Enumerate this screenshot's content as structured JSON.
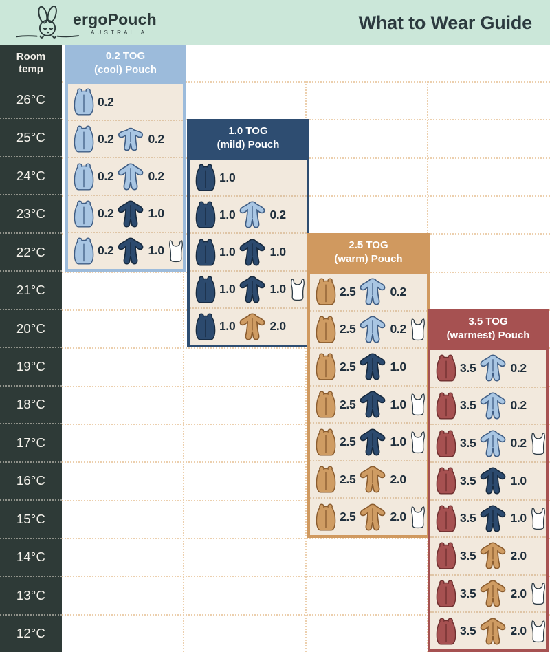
{
  "header": {
    "brand": "ergoPouch",
    "brand_subtitle": "AUSTRALIA",
    "title": "What to Wear Guide"
  },
  "table": {
    "corner_label": "Room temp"
  },
  "colors": {
    "banner_mint": "#cbe7d9",
    "temp_column_charcoal": "#2e3a37",
    "panel_cream": "#f2e9dd",
    "tog_0_2_blue": "#9cbbdb",
    "tog_1_0_navy": "#2e4d71",
    "tog_2_5_tan": "#d0995f",
    "tog_3_5_maroon": "#a65151",
    "singlet_white": "#ffffff",
    "grid_dots": "#eccfad",
    "tog_text": "#202f3c"
  },
  "chart_data": {
    "type": "table",
    "title": "What to Wear Guide",
    "row_axis_label": "Room temp",
    "temperatures": [
      "26°C",
      "25°C",
      "24°C",
      "23°C",
      "22°C",
      "21°C",
      "20°C",
      "19°C",
      "18°C",
      "17°C",
      "16°C",
      "15°C",
      "14°C",
      "13°C",
      "12°C"
    ],
    "panels": [
      {
        "tog": "0.2",
        "title_line1": "0.2 TOG",
        "title_line2": "(cool) Pouch",
        "color": "#9cbbdb",
        "pouch_color": "lightblue",
        "rows": [
          {
            "temp": "26°C",
            "pouch_tog": "0.2",
            "garment": null,
            "singlet": false
          },
          {
            "temp": "25°C",
            "pouch_tog": "0.2",
            "garment": "romper",
            "garment_color": "lightblue",
            "garment_tog": "0.2",
            "singlet": false
          },
          {
            "temp": "24°C",
            "pouch_tog": "0.2",
            "garment": "onesie",
            "garment_color": "lightblue",
            "garment_tog": "0.2",
            "singlet": false
          },
          {
            "temp": "23°C",
            "pouch_tog": "0.2",
            "garment": "onesie",
            "garment_color": "navy",
            "garment_tog": "1.0",
            "singlet": false
          },
          {
            "temp": "22°C",
            "pouch_tog": "0.2",
            "garment": "onesie",
            "garment_color": "navy",
            "garment_tog": "1.0",
            "singlet": true
          }
        ]
      },
      {
        "tog": "1.0",
        "title_line1": "1.0 TOG",
        "title_line2": "(mild) Pouch",
        "color": "#2e4d71",
        "pouch_color": "navy",
        "rows": [
          {
            "temp": "24°C",
            "pouch_tog": "1.0",
            "garment": null,
            "singlet": false
          },
          {
            "temp": "23°C",
            "pouch_tog": "1.0",
            "garment": "onesie",
            "garment_color": "lightblue",
            "garment_tog": "0.2",
            "singlet": false
          },
          {
            "temp": "22°C",
            "pouch_tog": "1.0",
            "garment": "onesie",
            "garment_color": "navy",
            "garment_tog": "1.0",
            "singlet": false
          },
          {
            "temp": "21°C",
            "pouch_tog": "1.0",
            "garment": "onesie",
            "garment_color": "navy",
            "garment_tog": "1.0",
            "singlet": true
          },
          {
            "temp": "20°C",
            "pouch_tog": "1.0",
            "garment": "onesie",
            "garment_color": "tan",
            "garment_tog": "2.0",
            "singlet": false
          }
        ]
      },
      {
        "tog": "2.5",
        "title_line1": "2.5 TOG",
        "title_line2": "(warm) Pouch",
        "color": "#d0995f",
        "pouch_color": "tan",
        "rows": [
          {
            "temp": "21°C",
            "pouch_tog": "2.5",
            "garment": "onesie",
            "garment_color": "lightblue",
            "garment_tog": "0.2",
            "singlet": false
          },
          {
            "temp": "20°C",
            "pouch_tog": "2.5",
            "garment": "onesie",
            "garment_color": "lightblue",
            "garment_tog": "0.2",
            "singlet": true
          },
          {
            "temp": "19°C",
            "pouch_tog": "2.5",
            "garment": "onesie",
            "garment_color": "navy",
            "garment_tog": "1.0",
            "singlet": false
          },
          {
            "temp": "18°C",
            "pouch_tog": "2.5",
            "garment": "onesie",
            "garment_color": "navy",
            "garment_tog": "1.0",
            "singlet": true
          },
          {
            "temp": "17°C",
            "pouch_tog": "2.5",
            "garment": "onesie",
            "garment_color": "navy",
            "garment_tog": "1.0",
            "singlet": true
          },
          {
            "temp": "16°C",
            "pouch_tog": "2.5",
            "garment": "onesie",
            "garment_color": "tan",
            "garment_tog": "2.0",
            "singlet": false
          },
          {
            "temp": "15°C",
            "pouch_tog": "2.5",
            "garment": "onesie",
            "garment_color": "tan",
            "garment_tog": "2.0",
            "singlet": true
          }
        ]
      },
      {
        "tog": "3.5",
        "title_line1": "3.5 TOG",
        "title_line2": "(warmest) Pouch",
        "color": "#a65151",
        "pouch_color": "maroon",
        "rows": [
          {
            "temp": "19°C",
            "pouch_tog": "3.5",
            "garment": "onesie",
            "garment_color": "lightblue",
            "garment_tog": "0.2",
            "singlet": false
          },
          {
            "temp": "18°C",
            "pouch_tog": "3.5",
            "garment": "onesie",
            "garment_color": "lightblue",
            "garment_tog": "0.2",
            "singlet": false
          },
          {
            "temp": "17°C",
            "pouch_tog": "3.5",
            "garment": "onesie",
            "garment_color": "lightblue",
            "garment_tog": "0.2",
            "singlet": true
          },
          {
            "temp": "16°C",
            "pouch_tog": "3.5",
            "garment": "onesie",
            "garment_color": "navy",
            "garment_tog": "1.0",
            "singlet": false
          },
          {
            "temp": "15°C",
            "pouch_tog": "3.5",
            "garment": "onesie",
            "garment_color": "navy",
            "garment_tog": "1.0",
            "singlet": true
          },
          {
            "temp": "14°C",
            "pouch_tog": "3.5",
            "garment": "onesie",
            "garment_color": "tan",
            "garment_tog": "2.0",
            "singlet": false
          },
          {
            "temp": "13°C",
            "pouch_tog": "3.5",
            "garment": "onesie",
            "garment_color": "tan",
            "garment_tog": "2.0",
            "singlet": true
          },
          {
            "temp": "12°C",
            "pouch_tog": "3.5",
            "garment": "onesie",
            "garment_color": "tan",
            "garment_tog": "2.0",
            "singlet": true
          }
        ]
      }
    ]
  }
}
